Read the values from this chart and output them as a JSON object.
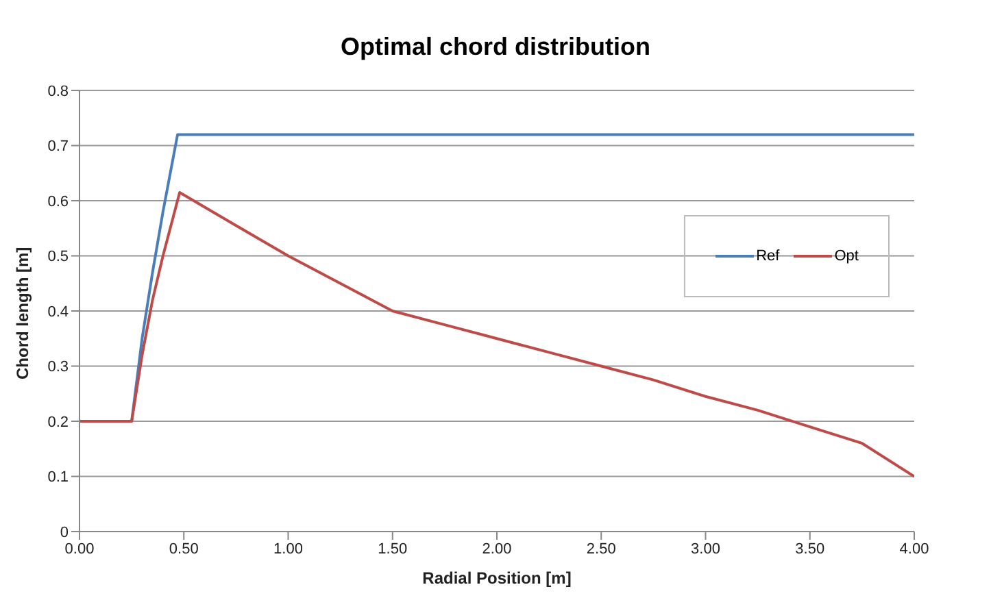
{
  "chart_data": {
    "type": "line",
    "title": "Optimal chord distribution",
    "xlabel": "Radial Position [m]",
    "ylabel": "Chord length [m]",
    "series": [
      {
        "name": "Ref",
        "color": "#4a7ebb",
        "x": [
          0,
          0.25,
          0.3,
          0.35,
          0.4,
          0.47,
          4.0
        ],
        "values": [
          0.2,
          0.2,
          0.35,
          0.47,
          0.58,
          0.72,
          0.72
        ]
      },
      {
        "name": "Opt",
        "color": "#be4b48",
        "x": [
          0,
          0.25,
          0.3,
          0.35,
          0.4,
          0.48,
          0.75,
          1.0,
          1.25,
          1.5,
          1.75,
          2.0,
          2.25,
          2.5,
          2.75,
          3.0,
          3.25,
          3.5,
          3.75,
          4.0
        ],
        "values": [
          0.2,
          0.2,
          0.32,
          0.42,
          0.5,
          0.615,
          0.555,
          0.5,
          0.45,
          0.4,
          0.375,
          0.35,
          0.325,
          0.3,
          0.275,
          0.245,
          0.22,
          0.19,
          0.16,
          0.1
        ]
      }
    ],
    "xlim": [
      0,
      4
    ],
    "xticks": [
      {
        "value": 0,
        "label": "0.00"
      },
      {
        "value": 0.5,
        "label": "0.50"
      },
      {
        "value": 1,
        "label": "1.00"
      },
      {
        "value": 1.5,
        "label": "1.50"
      },
      {
        "value": 2,
        "label": "2.00"
      },
      {
        "value": 2.5,
        "label": "2.50"
      },
      {
        "value": 3,
        "label": "3.00"
      },
      {
        "value": 3.5,
        "label": "3.50"
      },
      {
        "value": 4,
        "label": "4.00"
      }
    ],
    "ylim": [
      0,
      0.8
    ],
    "yticks": [
      0,
      0.1,
      0.2,
      0.3,
      0.4,
      0.5,
      0.6,
      0.7,
      0.8
    ],
    "grid": "y",
    "legend": "right",
    "marker": "none",
    "line_style": "solid"
  }
}
